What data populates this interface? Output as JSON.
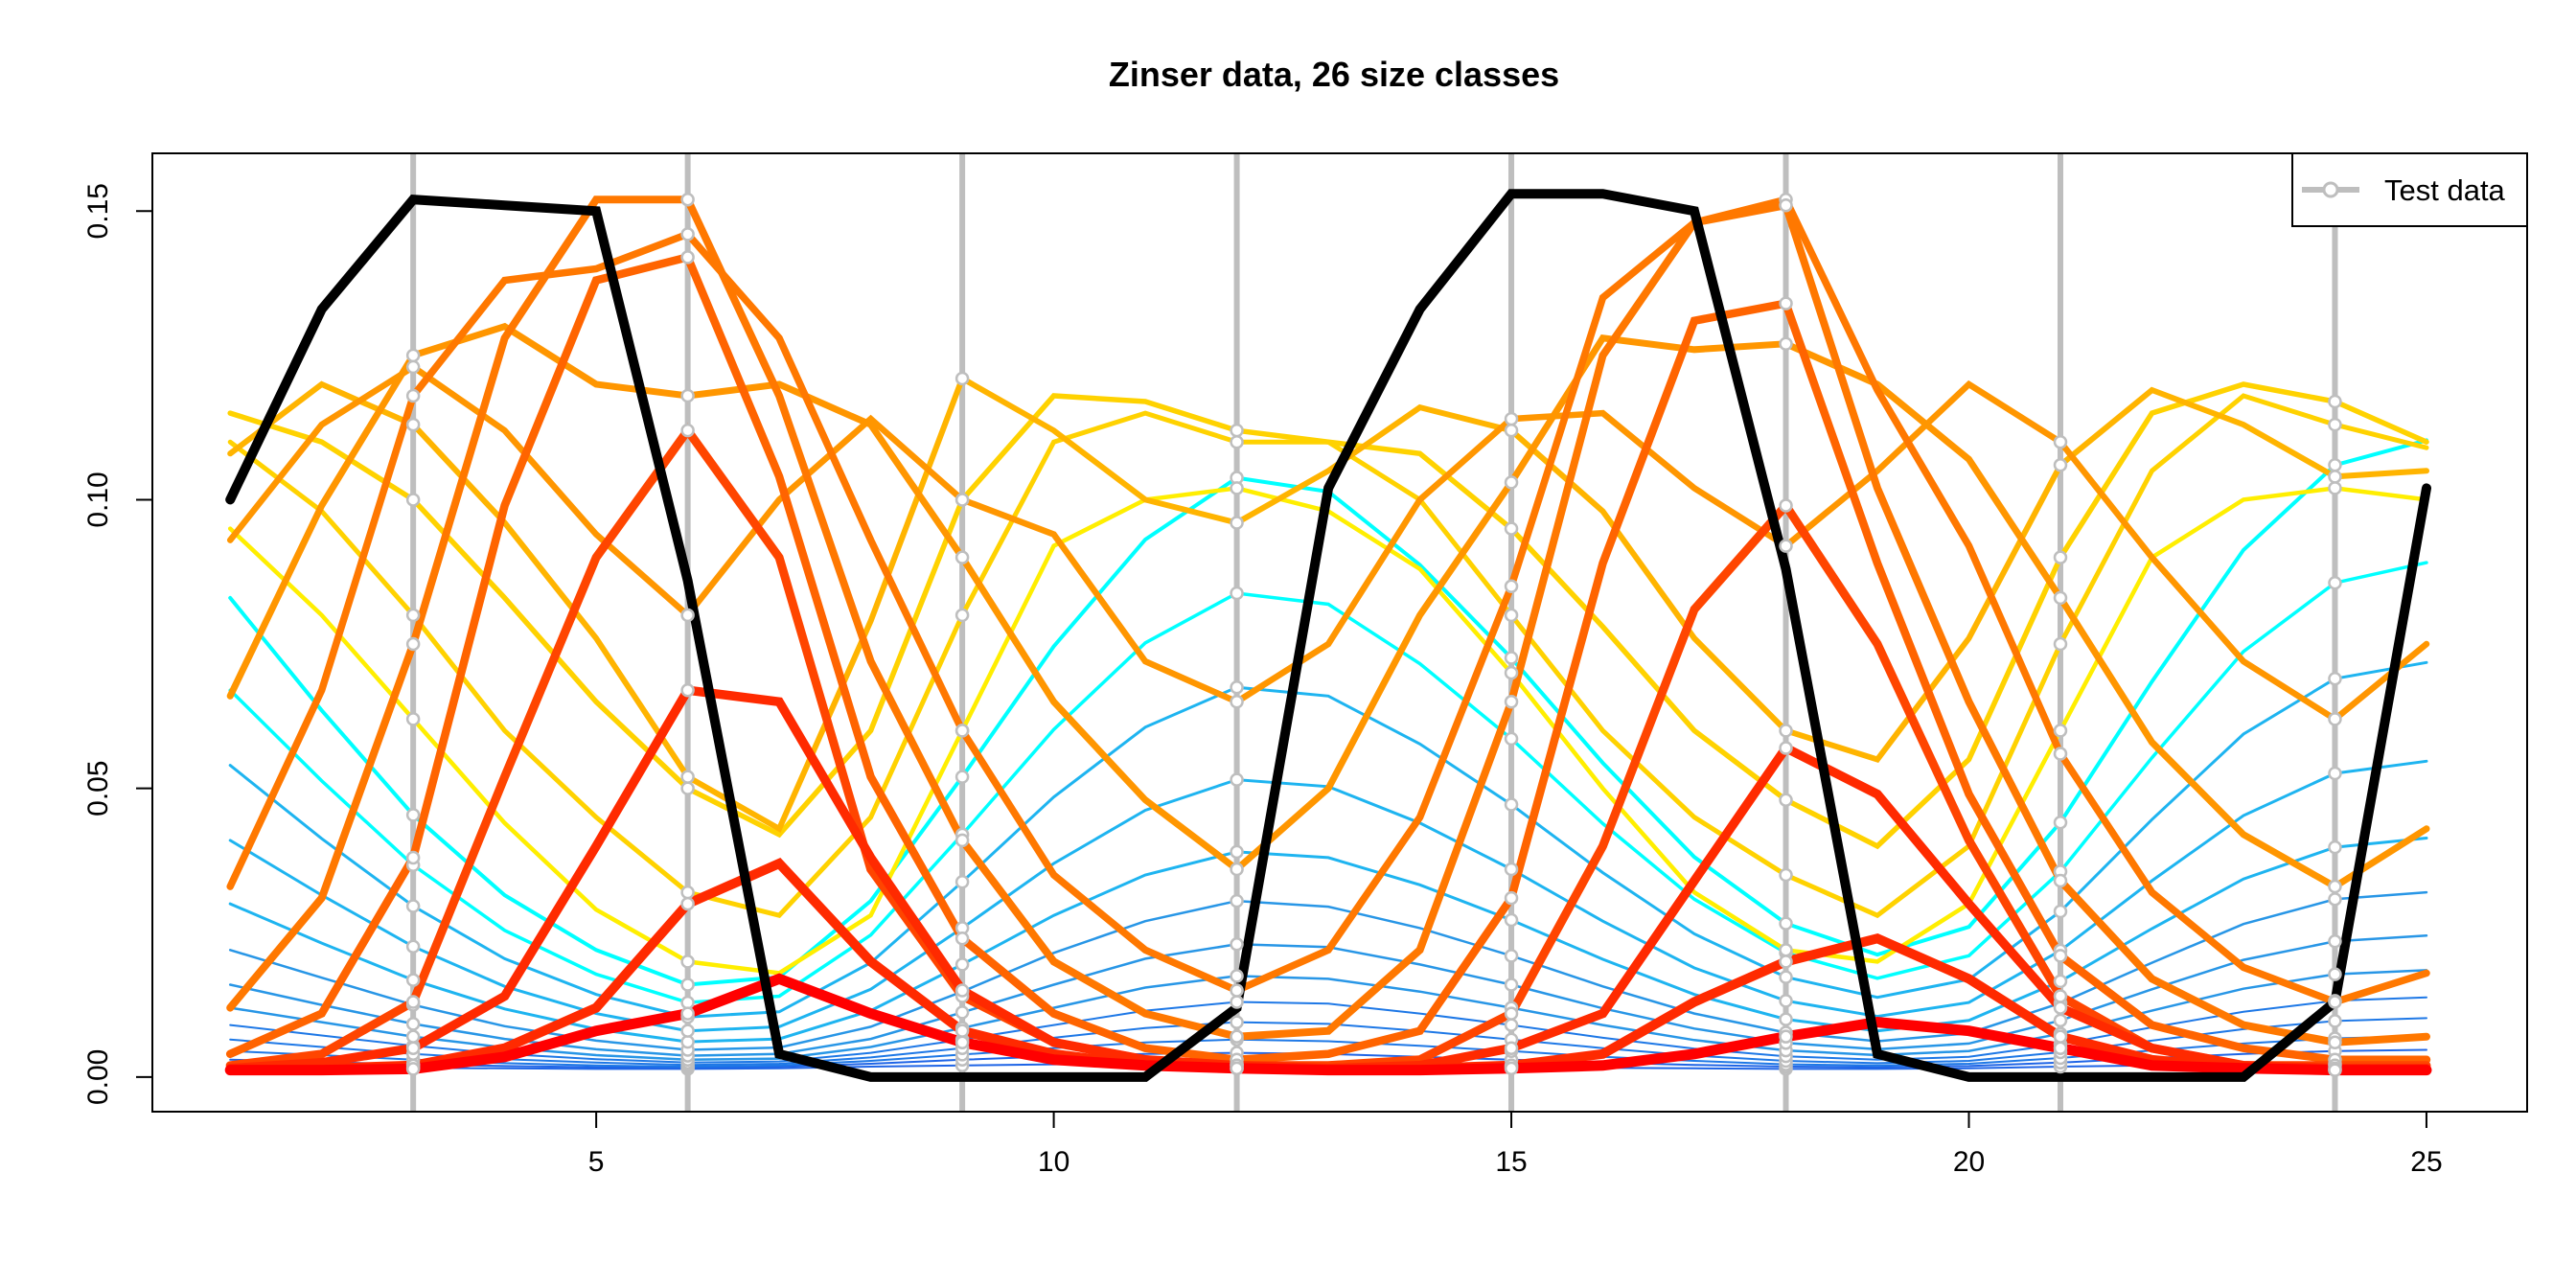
{
  "chart_data": {
    "type": "line",
    "title": "Zinser data, 26 size classes",
    "xlabel": "",
    "ylabel": "",
    "xlim": [
      0.15,
      26.1
    ],
    "ylim": [
      -0.006,
      0.16
    ],
    "x_ticks": [
      5,
      10,
      15,
      20,
      25
    ],
    "y_ticks": [
      0.0,
      0.05,
      0.1,
      0.15
    ],
    "y_tick_labels": [
      "0.00",
      "0.05",
      "0.10",
      "0.15"
    ],
    "grid": false,
    "legend": {
      "position": "top-right",
      "entries": [
        "Test data"
      ]
    },
    "colors": {
      "test_line": "#bebebe",
      "black_line": "#000000",
      "blues": [
        "#1e64e6",
        "#1e78e6",
        "#2896e6",
        "#1eb4f0",
        "#00ffff"
      ],
      "yellows": [
        "#ffee00",
        "#ffd200",
        "#ffb400"
      ],
      "oranges": [
        "#ff9600",
        "#ff7800",
        "#ff6400"
      ],
      "reds": [
        "#ff4500",
        "#ff2a00",
        "#ff0000"
      ]
    },
    "test_times": [
      3,
      6,
      9,
      12,
      15,
      18,
      21,
      24
    ],
    "x": [
      1,
      2,
      3,
      4,
      5,
      6,
      7,
      8,
      9,
      10,
      11,
      12,
      13,
      14,
      15,
      16,
      17,
      18,
      19,
      20,
      21,
      22,
      23,
      24,
      25
    ],
    "series": [
      {
        "values": [
          0.002,
          0.0018,
          0.0016,
          0.0015,
          0.0014,
          0.0014,
          0.0015,
          0.0018,
          0.002,
          0.0022,
          0.0023,
          0.0023,
          0.0022,
          0.002,
          0.0018,
          0.0016,
          0.0015,
          0.0014,
          0.0014,
          0.0015,
          0.0018,
          0.002,
          0.0022,
          0.0023,
          0.0023
        ]
      },
      {
        "values": [
          0.003,
          0.0026,
          0.0022,
          0.0019,
          0.0017,
          0.0016,
          0.0018,
          0.0023,
          0.003,
          0.0036,
          0.004,
          0.0042,
          0.004,
          0.0035,
          0.003,
          0.0025,
          0.0021,
          0.0018,
          0.0017,
          0.0019,
          0.0025,
          0.0033,
          0.004,
          0.0045,
          0.0047
        ]
      },
      {
        "values": [
          0.0045,
          0.0038,
          0.003,
          0.0024,
          0.002,
          0.0018,
          0.002,
          0.0028,
          0.0039,
          0.005,
          0.006,
          0.0065,
          0.0062,
          0.0054,
          0.0045,
          0.0035,
          0.0028,
          0.0022,
          0.002,
          0.0023,
          0.0033,
          0.0046,
          0.0058,
          0.0067,
          0.0071
        ]
      },
      {
        "values": [
          0.0065,
          0.0052,
          0.004,
          0.0031,
          0.0025,
          0.0021,
          0.0023,
          0.0034,
          0.005,
          0.0068,
          0.0085,
          0.0095,
          0.0092,
          0.008,
          0.0065,
          0.005,
          0.0037,
          0.0028,
          0.0024,
          0.0028,
          0.0043,
          0.0063,
          0.0083,
          0.0097,
          0.0102
        ]
      },
      {
        "values": [
          0.009,
          0.0072,
          0.0054,
          0.004,
          0.0031,
          0.0025,
          0.0027,
          0.0042,
          0.0065,
          0.009,
          0.0115,
          0.013,
          0.0127,
          0.011,
          0.009,
          0.0068,
          0.0049,
          0.0036,
          0.003,
          0.0035,
          0.0057,
          0.0086,
          0.0113,
          0.0132,
          0.0138
        ]
      },
      {
        "values": [
          0.012,
          0.0095,
          0.007,
          0.0051,
          0.0038,
          0.003,
          0.0032,
          0.0052,
          0.0085,
          0.012,
          0.0155,
          0.0175,
          0.017,
          0.0148,
          0.012,
          0.009,
          0.0064,
          0.0046,
          0.0038,
          0.0045,
          0.0075,
          0.0115,
          0.0153,
          0.0178,
          0.0185
        ]
      },
      {
        "values": [
          0.016,
          0.0125,
          0.0092,
          0.0066,
          0.0048,
          0.0037,
          0.004,
          0.0066,
          0.0112,
          0.016,
          0.0205,
          0.023,
          0.0225,
          0.0195,
          0.016,
          0.0119,
          0.0084,
          0.0059,
          0.0048,
          0.0058,
          0.0098,
          0.0152,
          0.0203,
          0.0235,
          0.0245
        ]
      },
      {
        "values": [
          0.022,
          0.0172,
          0.0125,
          0.0088,
          0.0063,
          0.0047,
          0.0051,
          0.0087,
          0.0148,
          0.0215,
          0.027,
          0.0305,
          0.0295,
          0.0258,
          0.021,
          0.0157,
          0.011,
          0.0077,
          0.0062,
          0.0076,
          0.0128,
          0.0198,
          0.0265,
          0.0308,
          0.032
        ]
      },
      {
        "values": [
          0.03,
          0.0232,
          0.0168,
          0.0118,
          0.0083,
          0.0061,
          0.0066,
          0.0115,
          0.0195,
          0.028,
          0.035,
          0.039,
          0.038,
          0.0333,
          0.0272,
          0.0204,
          0.0143,
          0.01,
          0.008,
          0.0098,
          0.0166,
          0.0257,
          0.0343,
          0.0398,
          0.0414
        ]
      },
      {
        "values": [
          0.041,
          0.0315,
          0.0226,
          0.0157,
          0.011,
          0.008,
          0.0087,
          0.0152,
          0.0258,
          0.037,
          0.0462,
          0.0515,
          0.0503,
          0.044,
          0.036,
          0.027,
          0.0189,
          0.0132,
          0.0105,
          0.0129,
          0.0219,
          0.034,
          0.0453,
          0.0526,
          0.0547
        ]
      },
      {
        "values": [
          0.054,
          0.0413,
          0.0296,
          0.0205,
          0.0143,
          0.0104,
          0.0113,
          0.0198,
          0.0338,
          0.0485,
          0.0606,
          0.0675,
          0.066,
          0.0577,
          0.0472,
          0.0354,
          0.0248,
          0.0173,
          0.0138,
          0.0169,
          0.0287,
          0.0446,
          0.0594,
          0.069,
          0.0718
        ]
      },
      {
        "values": [
          0.067,
          0.0513,
          0.0367,
          0.0254,
          0.0178,
          0.0129,
          0.014,
          0.0246,
          0.042,
          0.0602,
          0.0752,
          0.0838,
          0.0819,
          0.0716,
          0.0586,
          0.0439,
          0.0308,
          0.0215,
          0.0171,
          0.021,
          0.0356,
          0.0553,
          0.0737,
          0.0856,
          0.0891
        ]
      },
      {
        "values": [
          0.083,
          0.0635,
          0.0454,
          0.0315,
          0.022,
          0.016,
          0.0173,
          0.0305,
          0.052,
          0.0746,
          0.0931,
          0.1038,
          0.1014,
          0.0887,
          0.0726,
          0.0544,
          0.0381,
          0.0266,
          0.0212,
          0.026,
          0.0441,
          0.0685,
          0.0913,
          0.106,
          0.1103
        ]
      },
      {
        "values": [
          0.095,
          0.08,
          0.062,
          0.044,
          0.029,
          0.02,
          0.018,
          0.028,
          0.06,
          0.092,
          0.1,
          0.102,
          0.098,
          0.088,
          0.07,
          0.05,
          0.032,
          0.022,
          0.02,
          0.03,
          0.06,
          0.09,
          0.1,
          0.102,
          0.1
        ]
      },
      {
        "values": [
          0.11,
          0.098,
          0.08,
          0.06,
          0.045,
          0.032,
          0.028,
          0.045,
          0.08,
          0.11,
          0.115,
          0.11,
          0.11,
          0.1,
          0.08,
          0.06,
          0.045,
          0.035,
          0.028,
          0.04,
          0.075,
          0.105,
          0.118,
          0.113,
          0.109
        ]
      },
      {
        "values": [
          0.115,
          0.11,
          0.1,
          0.083,
          0.065,
          0.05,
          0.042,
          0.06,
          0.1,
          0.118,
          0.117,
          0.112,
          0.11,
          0.108,
          0.095,
          0.078,
          0.06,
          0.048,
          0.04,
          0.055,
          0.09,
          0.115,
          0.12,
          0.117,
          0.11
        ]
      },
      {
        "values": [
          0.108,
          0.12,
          0.113,
          0.096,
          0.076,
          0.052,
          0.043,
          0.079,
          0.121,
          0.112,
          0.1,
          0.096,
          0.105,
          0.116,
          0.112,
          0.098,
          0.076,
          0.06,
          0.055,
          0.076,
          0.106,
          0.119,
          0.113,
          0.104,
          0.105
        ]
      },
      {
        "values": [
          0.093,
          0.113,
          0.123,
          0.112,
          0.094,
          0.08,
          0.1,
          0.114,
          0.1,
          0.094,
          0.072,
          0.065,
          0.075,
          0.1,
          0.114,
          0.115,
          0.102,
          0.092,
          0.105,
          0.12,
          0.11,
          0.09,
          0.072,
          0.062,
          0.075
        ]
      },
      {
        "values": [
          0.066,
          0.099,
          0.125,
          0.13,
          0.12,
          0.118,
          0.12,
          0.113,
          0.09,
          0.065,
          0.048,
          0.036,
          0.05,
          0.08,
          0.103,
          0.128,
          0.126,
          0.127,
          0.12,
          0.107,
          0.083,
          0.058,
          0.042,
          0.033,
          0.043
        ]
      },
      {
        "values": [
          0.033,
          0.067,
          0.118,
          0.138,
          0.14,
          0.146,
          0.128,
          0.093,
          0.06,
          0.035,
          0.022,
          0.015,
          0.022,
          0.045,
          0.085,
          0.135,
          0.148,
          0.152,
          0.119,
          0.092,
          0.056,
          0.032,
          0.019,
          0.013,
          0.018
        ]
      },
      {
        "values": [
          0.012,
          0.031,
          0.075,
          0.128,
          0.152,
          0.152,
          0.118,
          0.072,
          0.041,
          0.02,
          0.011,
          0.007,
          0.008,
          0.022,
          0.065,
          0.125,
          0.148,
          0.151,
          0.102,
          0.065,
          0.034,
          0.017,
          0.009,
          0.006,
          0.007
        ]
      },
      {
        "values": [
          0.004,
          0.011,
          0.038,
          0.099,
          0.138,
          0.142,
          0.104,
          0.052,
          0.024,
          0.011,
          0.005,
          0.003,
          0.004,
          0.008,
          0.031,
          0.089,
          0.131,
          0.134,
          0.089,
          0.049,
          0.021,
          0.009,
          0.005,
          0.003,
          0.003
        ]
      },
      {
        "values": [
          0.002,
          0.004,
          0.013,
          0.052,
          0.09,
          0.112,
          0.09,
          0.036,
          0.014,
          0.006,
          0.003,
          0.002,
          0.002,
          0.003,
          0.011,
          0.04,
          0.081,
          0.099,
          0.075,
          0.041,
          0.014,
          0.005,
          0.002,
          0.002,
          0.002
        ]
      },
      {
        "values": [
          0.0015,
          0.0025,
          0.005,
          0.014,
          0.04,
          0.067,
          0.065,
          0.038,
          0.015,
          0.006,
          0.003,
          0.002,
          0.0015,
          0.002,
          0.005,
          0.011,
          0.034,
          0.057,
          0.049,
          0.03,
          0.012,
          0.005,
          0.002,
          0.0015,
          0.0015
        ]
      },
      {
        "values": [
          0.0012,
          0.0015,
          0.002,
          0.005,
          0.012,
          0.03,
          0.037,
          0.02,
          0.008,
          0.004,
          0.002,
          0.0015,
          0.0012,
          0.0015,
          0.002,
          0.004,
          0.013,
          0.02,
          0.024,
          0.017,
          0.007,
          0.003,
          0.0015,
          0.0012,
          0.0012
        ]
      },
      {
        "values": [
          0.0012,
          0.0012,
          0.0014,
          0.0035,
          0.008,
          0.011,
          0.017,
          0.011,
          0.006,
          0.003,
          0.002,
          0.0015,
          0.0012,
          0.0012,
          0.0015,
          0.002,
          0.004,
          0.007,
          0.0095,
          0.008,
          0.005,
          0.002,
          0.0015,
          0.0012,
          0.0012
        ]
      },
      {
        "values": [
          0.1,
          0.133,
          0.152,
          0.151,
          0.15,
          0.086,
          0.004,
          0.0,
          0.0,
          0.0,
          0.0,
          0.012,
          0.102,
          0.133,
          0.153,
          0.153,
          0.15,
          0.088,
          0.004,
          0.0,
          0.0,
          0.0,
          0.0,
          0.013,
          0.102
        ]
      }
    ]
  }
}
